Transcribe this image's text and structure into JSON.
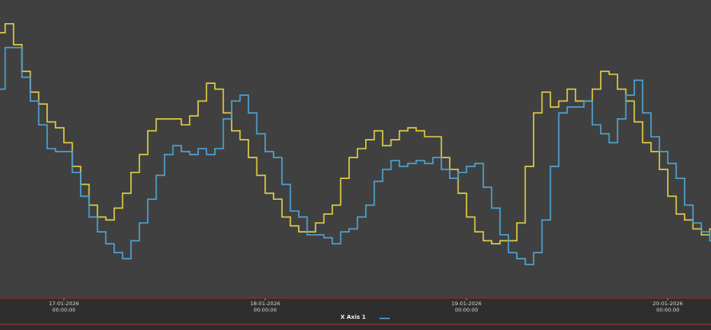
{
  "chart_data": {
    "type": "line",
    "step": "post",
    "x_label": "X Axis 1",
    "x": [
      "16-01-2026 16:00:00",
      "16-01-2026 17:00:00",
      "16-01-2026 18:00:00",
      "16-01-2026 19:00:00",
      "16-01-2026 20:00:00",
      "16-01-2026 21:00:00",
      "16-01-2026 22:00:00",
      "16-01-2026 23:00:00",
      "17-01-2026 00:00:00",
      "17-01-2026 01:00:00",
      "17-01-2026 02:00:00",
      "17-01-2026 03:00:00",
      "17-01-2026 04:00:00",
      "17-01-2026 05:00:00",
      "17-01-2026 06:00:00",
      "17-01-2026 07:00:00",
      "17-01-2026 08:00:00",
      "17-01-2026 09:00:00",
      "17-01-2026 10:00:00",
      "17-01-2026 11:00:00",
      "17-01-2026 12:00:00",
      "17-01-2026 13:00:00",
      "17-01-2026 14:00:00",
      "17-01-2026 15:00:00",
      "17-01-2026 16:00:00",
      "17-01-2026 17:00:00",
      "17-01-2026 18:00:00",
      "17-01-2026 19:00:00",
      "17-01-2026 20:00:00",
      "17-01-2026 21:00:00",
      "17-01-2026 22:00:00",
      "17-01-2026 23:00:00",
      "18-01-2026 00:00:00",
      "18-01-2026 01:00:00",
      "18-01-2026 02:00:00",
      "18-01-2026 03:00:00",
      "18-01-2026 04:00:00",
      "18-01-2026 05:00:00",
      "18-01-2026 06:00:00",
      "18-01-2026 07:00:00",
      "18-01-2026 08:00:00",
      "18-01-2026 09:00:00",
      "18-01-2026 10:00:00",
      "18-01-2026 11:00:00",
      "18-01-2026 12:00:00",
      "18-01-2026 13:00:00",
      "18-01-2026 14:00:00",
      "18-01-2026 15:00:00",
      "18-01-2026 16:00:00",
      "18-01-2026 17:00:00",
      "18-01-2026 18:00:00",
      "18-01-2026 19:00:00",
      "18-01-2026 20:00:00",
      "18-01-2026 21:00:00",
      "18-01-2026 22:00:00",
      "18-01-2026 23:00:00",
      "19-01-2026 00:00:00",
      "19-01-2026 01:00:00",
      "19-01-2026 02:00:00",
      "19-01-2026 03:00:00",
      "19-01-2026 04:00:00",
      "19-01-2026 05:00:00",
      "19-01-2026 06:00:00",
      "19-01-2026 07:00:00",
      "19-01-2026 08:00:00",
      "19-01-2026 09:00:00",
      "19-01-2026 10:00:00",
      "19-01-2026 11:00:00",
      "19-01-2026 12:00:00",
      "19-01-2026 13:00:00",
      "19-01-2026 14:00:00",
      "19-01-2026 15:00:00",
      "19-01-2026 16:00:00",
      "19-01-2026 17:00:00",
      "19-01-2026 18:00:00",
      "19-01-2026 19:00:00",
      "19-01-2026 20:00:00",
      "19-01-2026 21:00:00",
      "19-01-2026 22:00:00",
      "19-01-2026 23:00:00",
      "20-01-2026 00:00:00",
      "20-01-2026 01:00:00",
      "20-01-2026 02:00:00",
      "20-01-2026 03:00:00",
      "20-01-2026 04:00:00",
      "20-01-2026 05:00:00"
    ],
    "series": [
      {
        "color": "#e3cf45",
        "values": [
          89,
          92,
          85,
          76,
          69,
          65,
          59,
          57,
          52,
          44,
          38,
          31,
          27,
          26,
          30,
          35,
          42,
          48,
          56,
          60,
          60,
          60,
          58,
          61,
          66,
          72,
          70,
          62,
          56,
          53,
          47,
          41,
          35,
          33,
          27,
          24,
          22,
          22,
          25,
          28,
          31,
          40,
          47,
          50,
          53,
          56,
          51,
          53,
          56,
          57,
          56,
          54,
          54,
          47,
          43,
          35,
          27,
          22,
          19,
          18,
          19,
          19,
          25,
          44,
          62,
          69,
          64,
          66,
          70,
          66,
          66,
          70,
          76,
          75,
          70,
          66,
          59,
          52,
          49,
          43,
          34,
          28,
          26,
          23,
          21,
          23
        ]
      },
      {
        "color": "#4ea6d6",
        "values": [
          70,
          84,
          84,
          74,
          66,
          58,
          50,
          49,
          49,
          42,
          34,
          27,
          22,
          18,
          15,
          13,
          19,
          25,
          33,
          41,
          48,
          51,
          49,
          48,
          50,
          48,
          50,
          60,
          66,
          68,
          62,
          55,
          49,
          47,
          38,
          29,
          27,
          21,
          21,
          20,
          18,
          22,
          23,
          27,
          31,
          39,
          43,
          46,
          44,
          45,
          46,
          45,
          47,
          43,
          40,
          42,
          44,
          45,
          37,
          30,
          21,
          15,
          13,
          11,
          15,
          26,
          44,
          62,
          64,
          64,
          66,
          58,
          55,
          52,
          60,
          68,
          73,
          62,
          54,
          49,
          45,
          40,
          31,
          25,
          22,
          19
        ]
      }
    ],
    "xlim": [
      "16-01-2026 16:23:00",
      "20-01-2026 05:09:00"
    ],
    "xticks": [
      "17-01-2026 00:00:00",
      "18-01-2026 00:00:00",
      "19-01-2026 00:00:00",
      "20-01-2026 00:00:00"
    ],
    "ylim": [
      0,
      100
    ]
  }
}
